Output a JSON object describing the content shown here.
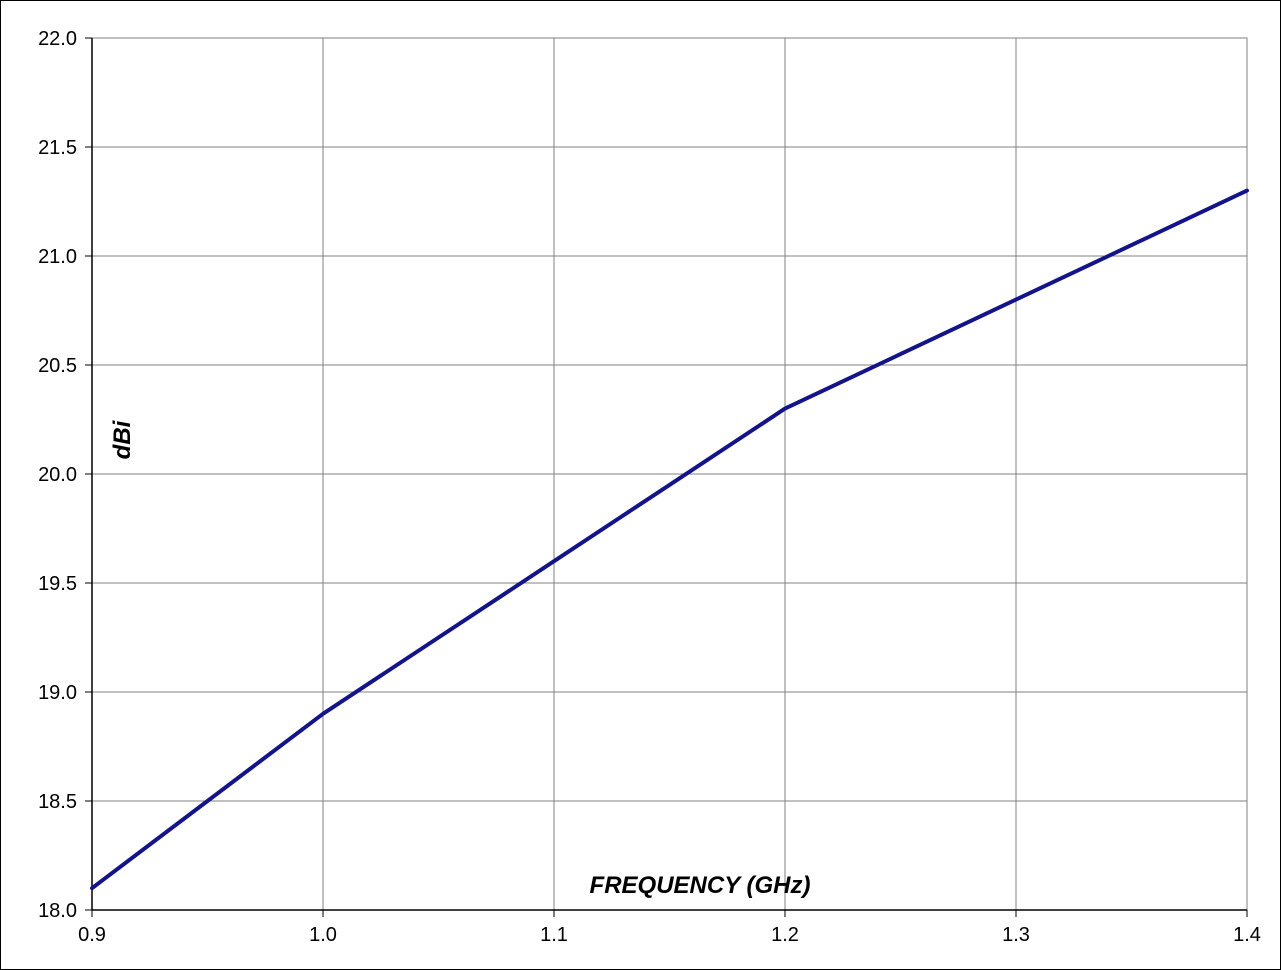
{
  "chart_data": {
    "type": "line",
    "title": "",
    "xlabel": "FREQUENCY (GHz)",
    "ylabel": "dBi",
    "xlim": [
      0.9,
      1.4
    ],
    "ylim": [
      18.0,
      22.0
    ],
    "xticks": [
      "0.9",
      "1.0",
      "1.1",
      "1.2",
      "1.3",
      "1.4"
    ],
    "yticks": [
      "18.0",
      "18.5",
      "19.0",
      "19.5",
      "20.0",
      "20.5",
      "21.0",
      "21.5",
      "22.0"
    ],
    "grid": true,
    "legend": "none",
    "series": [
      {
        "color": "#14148a",
        "x": [
          0.9,
          0.95,
          1.0,
          1.05,
          1.1,
          1.15,
          1.2,
          1.25,
          1.3,
          1.35,
          1.4
        ],
        "y": [
          18.1,
          18.5,
          18.9,
          19.25,
          19.6,
          19.95,
          20.3,
          20.55,
          20.8,
          21.05,
          21.3
        ]
      }
    ]
  }
}
